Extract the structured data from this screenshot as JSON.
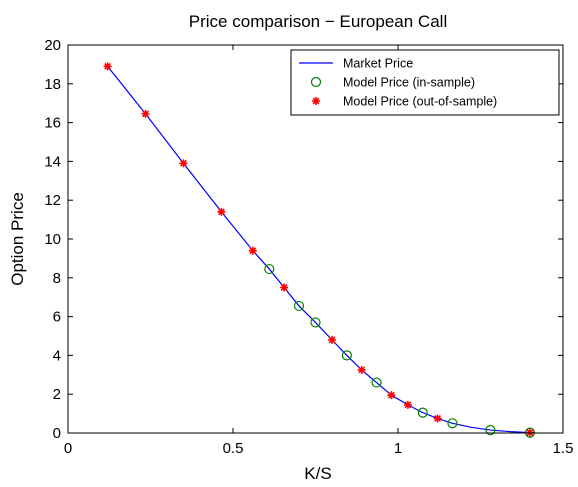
{
  "chart_data": {
    "type": "line",
    "title": "Price comparison − European Call",
    "xlabel": "K/S",
    "ylabel": "Option Price",
    "xlim": [
      0,
      1.5
    ],
    "ylim": [
      0,
      20
    ],
    "xticks": [
      0,
      0.5,
      1,
      1.5
    ],
    "xtick_labels": [
      "0",
      "0.5",
      "1",
      "1.5"
    ],
    "yticks": [
      0,
      2,
      4,
      6,
      8,
      10,
      12,
      14,
      16,
      18,
      20
    ],
    "ytick_labels": [
      "0",
      "2",
      "4",
      "6",
      "8",
      "10",
      "12",
      "14",
      "16",
      "18",
      "20"
    ],
    "grid": false,
    "legend_position": "top-right",
    "series": [
      {
        "name": "Market Price",
        "kind": "line",
        "color": "#0000ff",
        "x": [
          0.12,
          0.235,
          0.35,
          0.465,
          0.56,
          0.61,
          0.655,
          0.7,
          0.75,
          0.8,
          0.845,
          0.89,
          0.935,
          0.98,
          1.03,
          1.075,
          1.12,
          1.165,
          1.22,
          1.28,
          1.34,
          1.4
        ],
        "y": [
          18.9,
          16.45,
          13.9,
          11.4,
          9.4,
          8.45,
          7.5,
          6.55,
          5.7,
          4.8,
          4.0,
          3.25,
          2.6,
          1.95,
          1.45,
          1.05,
          0.75,
          0.5,
          0.3,
          0.15,
          0.07,
          0.02
        ]
      },
      {
        "name": "Model Price (in-sample)",
        "kind": "marker-circle",
        "color": "#008000",
        "x": [
          0.61,
          0.7,
          0.75,
          0.845,
          0.935,
          1.075,
          1.165,
          1.28,
          1.4
        ],
        "y": [
          8.45,
          6.55,
          5.7,
          4.0,
          2.6,
          1.05,
          0.5,
          0.15,
          0.02
        ]
      },
      {
        "name": "Model Price (out-of-sample)",
        "kind": "marker-star",
        "color": "#ff0000",
        "x": [
          0.12,
          0.235,
          0.35,
          0.465,
          0.56,
          0.655,
          0.8,
          0.89,
          0.98,
          1.03,
          1.12,
          1.4
        ],
        "y": [
          18.9,
          16.45,
          13.9,
          11.4,
          9.4,
          7.5,
          4.8,
          3.25,
          1.95,
          1.45,
          0.75,
          0.02
        ]
      }
    ]
  }
}
